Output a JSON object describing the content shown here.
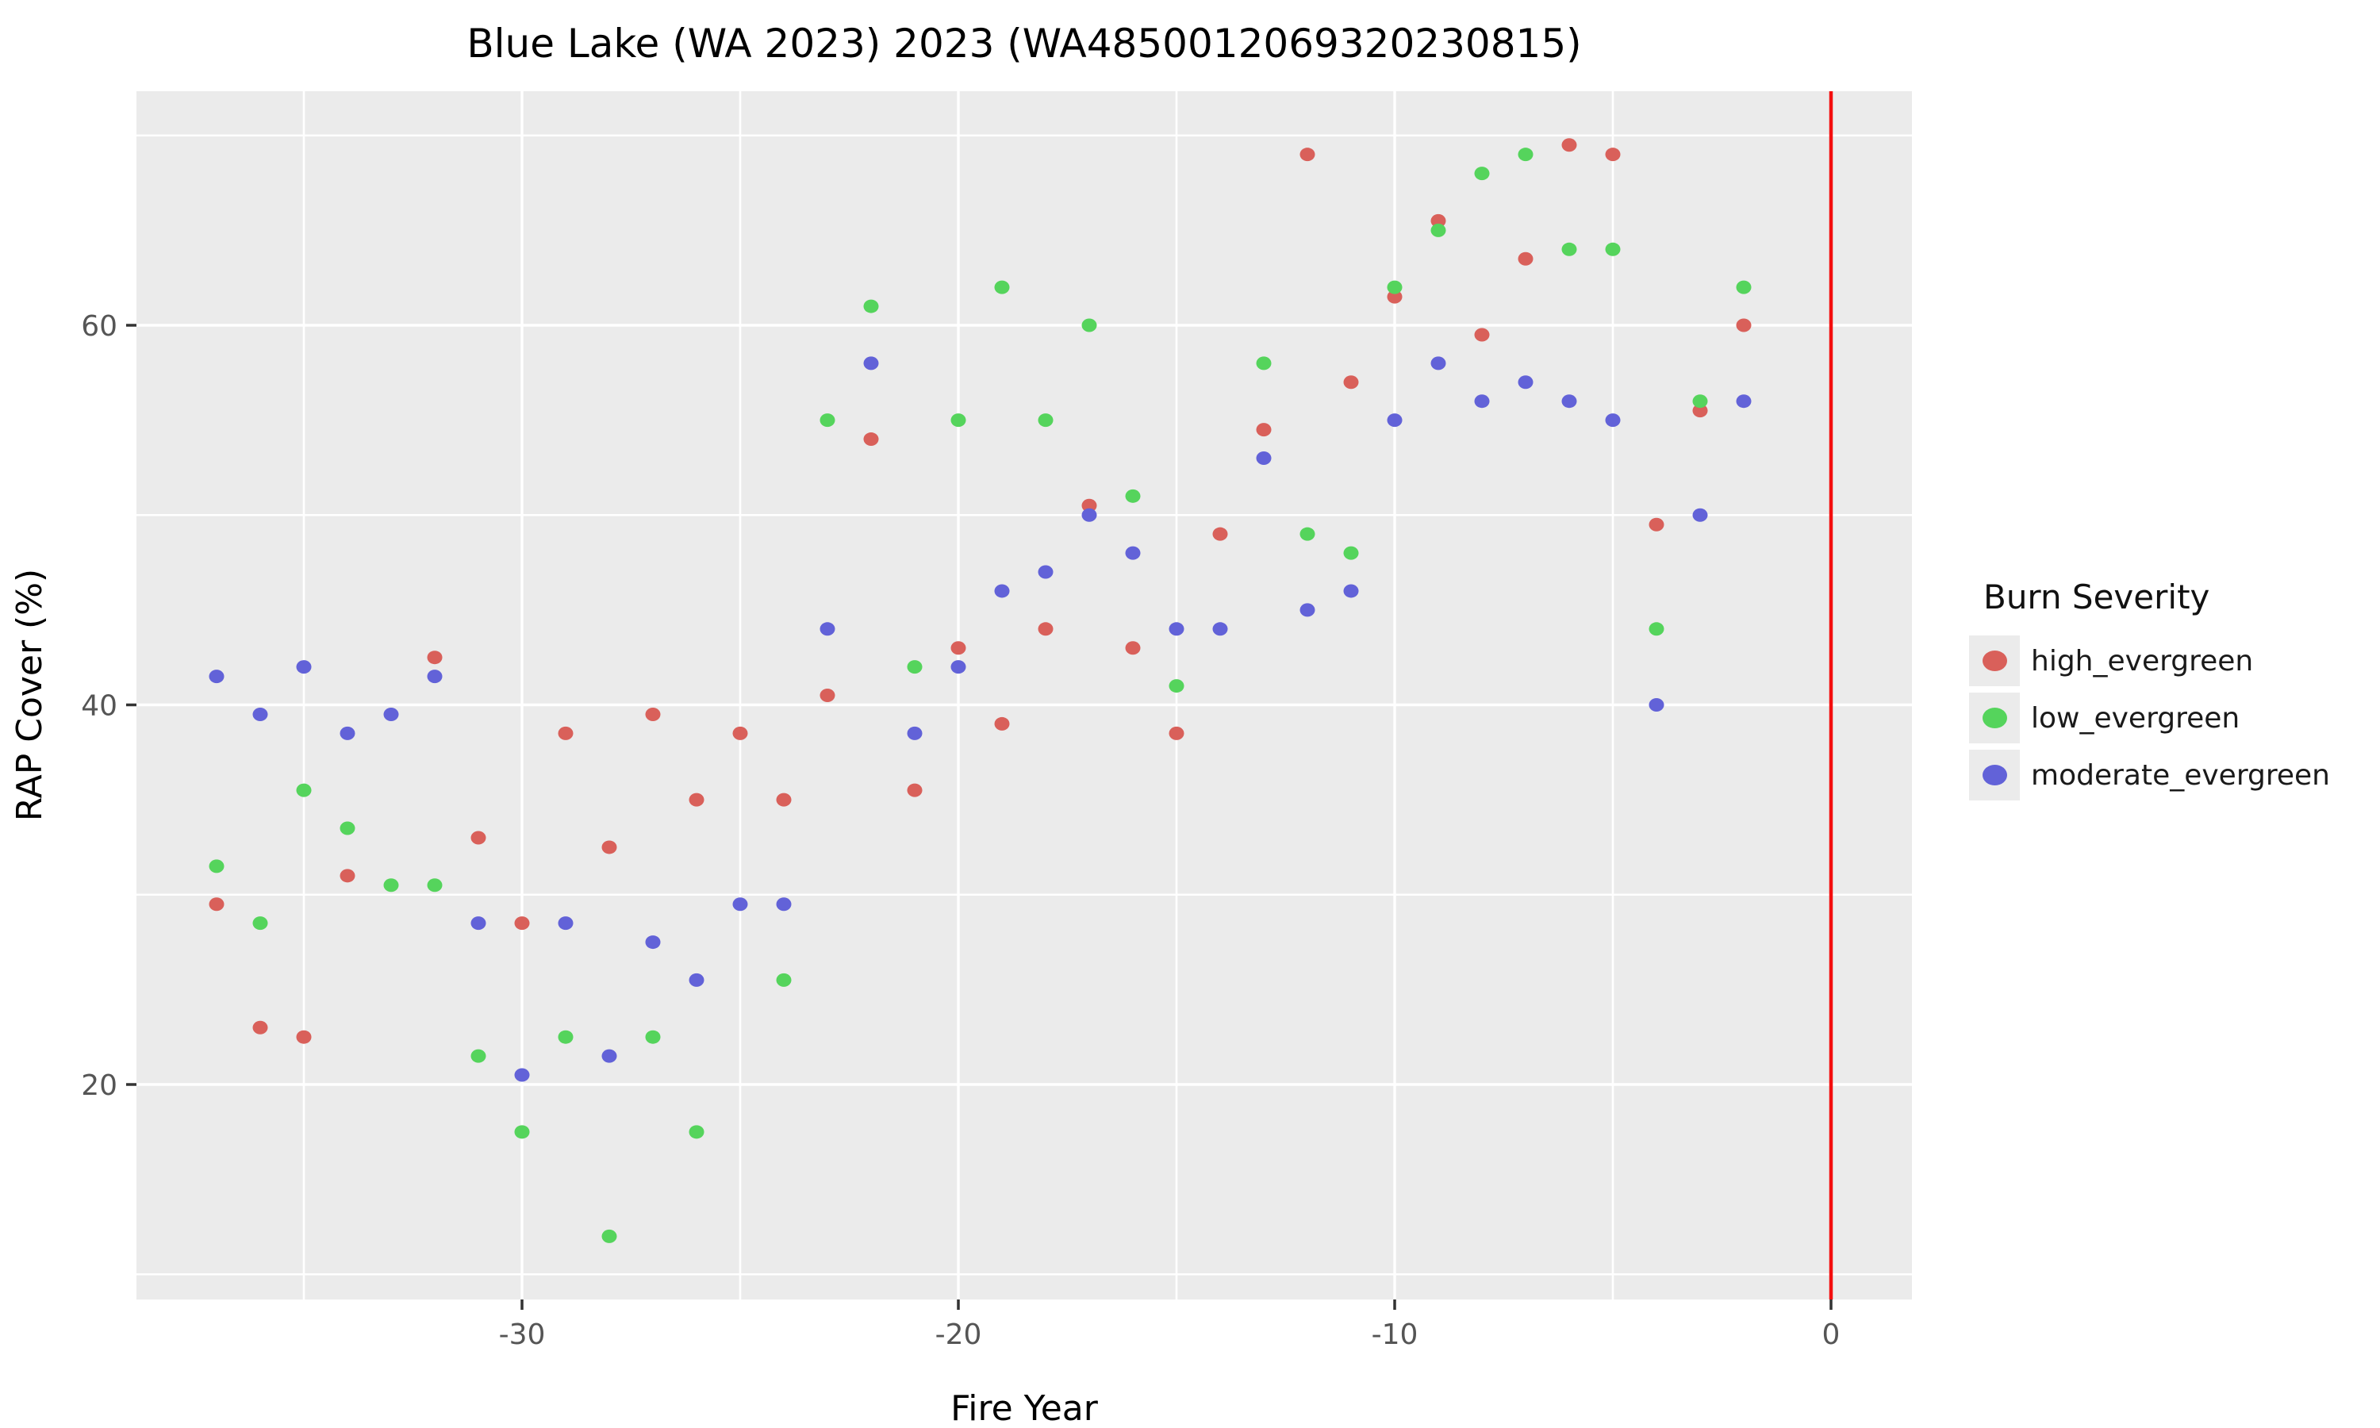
{
  "title": "Blue Lake (WA 2023) 2023 (WA4850012069320230815)",
  "axes": {
    "xlabel": "Fire Year",
    "ylabel": "RAP Cover (%)",
    "x_tick_labels": [
      "-30",
      "-20",
      "-10",
      "0"
    ],
    "y_tick_labels": [
      "20",
      "40",
      "60"
    ]
  },
  "legend": {
    "title": "Burn Severity",
    "items": [
      {
        "label": "high_evergreen",
        "color_key": "high_evergreen"
      },
      {
        "label": "low_evergreen",
        "color_key": "low_evergreen"
      },
      {
        "label": "moderate_evergreen",
        "color_key": "moderate_evergreen"
      }
    ]
  },
  "colors": {
    "high_evergreen": "#d9605a",
    "low_evergreen": "#55d45c",
    "moderate_evergreen": "#6262d8",
    "fire_line": "#f40f0f",
    "panel_bg": "#ebebeb",
    "grid": "#ffffff",
    "tick_label": "#555555",
    "tick_mark": "#333333",
    "text": "#000000"
  },
  "chart_data": {
    "type": "scatter",
    "title": "Blue Lake (WA 2023) 2023 (WA4850012069320230815)",
    "xlabel": "Fire Year",
    "ylabel": "RAP Cover (%)",
    "xlim": [
      -38.9,
      1.9
    ],
    "ylim": [
      8.7,
      72.4
    ],
    "x_tick_values": [
      -30,
      -20,
      -10,
      0
    ],
    "y_tick_values": [
      20,
      40,
      60
    ],
    "x_minor_gridlines": [
      -35,
      -25,
      -15,
      -5
    ],
    "y_minor_gridlines": [
      10,
      30,
      50,
      70
    ],
    "grid": true,
    "legend_position": "right",
    "vline_x": 0,
    "series": [
      {
        "name": "high_evergreen",
        "color_key": "high_evergreen",
        "points": [
          [
            -37,
            29.5
          ],
          [
            -36,
            23
          ],
          [
            -35,
            22.5
          ],
          [
            -34,
            31
          ],
          [
            -32,
            42.5
          ],
          [
            -31,
            33
          ],
          [
            -30,
            28.5
          ],
          [
            -29,
            38.5
          ],
          [
            -28,
            32.5
          ],
          [
            -27,
            39.5
          ],
          [
            -26,
            35
          ],
          [
            -25,
            38.5
          ],
          [
            -24,
            35
          ],
          [
            -23,
            40.5
          ],
          [
            -22,
            54
          ],
          [
            -21,
            35.5
          ],
          [
            -20,
            43
          ],
          [
            -19,
            39
          ],
          [
            -18,
            44
          ],
          [
            -17,
            50.5
          ],
          [
            -16,
            43
          ],
          [
            -15,
            38.5
          ],
          [
            -14,
            49
          ],
          [
            -13,
            54.5
          ],
          [
            -12,
            69
          ],
          [
            -11,
            57
          ],
          [
            -10,
            61.5
          ],
          [
            -9,
            65.5
          ],
          [
            -8,
            59.5
          ],
          [
            -7,
            63.5
          ],
          [
            -6,
            69.5
          ],
          [
            -5,
            69
          ],
          [
            -4,
            49.5
          ],
          [
            -3,
            55.5
          ],
          [
            -2,
            60
          ]
        ]
      },
      {
        "name": "low_evergreen",
        "color_key": "low_evergreen",
        "points": [
          [
            -37,
            31.5
          ],
          [
            -36,
            28.5
          ],
          [
            -35,
            35.5
          ],
          [
            -34,
            33.5
          ],
          [
            -33,
            30.5
          ],
          [
            -32,
            30.5
          ],
          [
            -31,
            21.5
          ],
          [
            -30,
            17.5
          ],
          [
            -29,
            22.5
          ],
          [
            -28,
            12
          ],
          [
            -27,
            22.5
          ],
          [
            -26,
            17.5
          ],
          [
            -24,
            25.5
          ],
          [
            -23,
            55
          ],
          [
            -22,
            61
          ],
          [
            -21,
            42
          ],
          [
            -20,
            55
          ],
          [
            -19,
            62
          ],
          [
            -18,
            55
          ],
          [
            -17,
            60
          ],
          [
            -16,
            51
          ],
          [
            -15,
            41
          ],
          [
            -13,
            58
          ],
          [
            -12,
            49
          ],
          [
            -11,
            48
          ],
          [
            -10,
            62
          ],
          [
            -9,
            65
          ],
          [
            -8,
            68
          ],
          [
            -7,
            69
          ],
          [
            -6,
            64
          ],
          [
            -5,
            64
          ],
          [
            -4,
            44
          ],
          [
            -3,
            56
          ],
          [
            -2,
            62
          ]
        ]
      },
      {
        "name": "moderate_evergreen",
        "color_key": "moderate_evergreen",
        "points": [
          [
            -37,
            41.5
          ],
          [
            -36,
            39.5
          ],
          [
            -35,
            42
          ],
          [
            -34,
            38.5
          ],
          [
            -33,
            39.5
          ],
          [
            -32,
            41.5
          ],
          [
            -31,
            28.5
          ],
          [
            -30,
            20.5
          ],
          [
            -29,
            28.5
          ],
          [
            -28,
            21.5
          ],
          [
            -27,
            27.5
          ],
          [
            -26,
            25.5
          ],
          [
            -25,
            29.5
          ],
          [
            -24,
            29.5
          ],
          [
            -23,
            44
          ],
          [
            -22,
            58
          ],
          [
            -21,
            38.5
          ],
          [
            -20,
            42
          ],
          [
            -19,
            46
          ],
          [
            -18,
            47
          ],
          [
            -17,
            50
          ],
          [
            -16,
            48
          ],
          [
            -15,
            44
          ],
          [
            -14,
            44
          ],
          [
            -13,
            53
          ],
          [
            -12,
            45
          ],
          [
            -11,
            46
          ],
          [
            -10,
            55
          ],
          [
            -9,
            58
          ],
          [
            -8,
            56
          ],
          [
            -7,
            57
          ],
          [
            -6,
            56
          ],
          [
            -5,
            55
          ],
          [
            -4,
            40
          ],
          [
            -3,
            50
          ],
          [
            -2,
            56
          ]
        ]
      }
    ]
  }
}
